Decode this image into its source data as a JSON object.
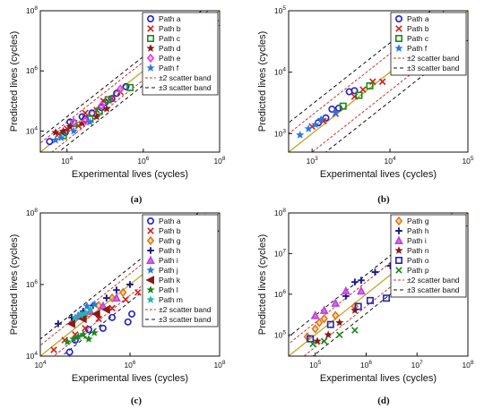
{
  "chart_data": [
    {
      "type": "scatter",
      "caption": "(a)",
      "xlabel": "Experimental lives (cycles)",
      "ylabel": "Predicted lives (cycles)",
      "xlim": [
        2000,
        100000000.0
      ],
      "ylim": [
        2000,
        100000000.0
      ],
      "log_scale": true,
      "x_tick_labels": [
        "10^4",
        "10^6",
        "10^8"
      ],
      "y_tick_labels": [
        "10^4",
        "10^6",
        "10^8"
      ],
      "legend_position": "top-right",
      "band_labels": [
        "±2 scatter band",
        "±3 scatter band"
      ],
      "series": [
        {
          "name": "Path a",
          "marker": "circle",
          "color": "#1f1fd1",
          "points": [
            [
              3500,
              4500
            ],
            [
              9000,
              9000
            ],
            [
              12000,
              20000
            ],
            [
              25000,
              30000
            ],
            [
              30000,
              25000
            ],
            [
              45000,
              40000
            ],
            [
              80000,
              60000
            ],
            [
              100000,
              90000
            ],
            [
              150000,
              120000
            ],
            [
              200000,
              180000
            ],
            [
              350000,
              300000
            ]
          ]
        },
        {
          "name": "Path b",
          "marker": "x",
          "color": "#d11f1f",
          "points": [
            [
              6000,
              8000
            ],
            [
              10000,
              12000
            ],
            [
              20000,
              15000
            ],
            [
              30000,
              40000
            ],
            [
              60000,
              50000
            ],
            [
              90000,
              100000
            ],
            [
              150000,
              120000
            ],
            [
              250000,
              200000
            ]
          ]
        },
        {
          "name": "Path c",
          "marker": "square",
          "color": "#1a8a1a",
          "points": [
            [
              8000,
              7000
            ],
            [
              15000,
              18000
            ],
            [
              40000,
              25000
            ],
            [
              70000,
              45000
            ],
            [
              120000,
              110000
            ],
            [
              450000,
              280000
            ]
          ]
        },
        {
          "name": "Path d",
          "marker": "star",
          "color": "#8b1a1a",
          "points": [
            [
              5000,
              9000
            ],
            [
              8000,
              10000
            ],
            [
              12000,
              14000
            ],
            [
              25000,
              18000
            ],
            [
              60000,
              30000
            ],
            [
              110000,
              55000
            ]
          ]
        },
        {
          "name": "Path e",
          "marker": "diamond",
          "color": "#e040e0",
          "points": [
            [
              15000,
              20000
            ],
            [
              30000,
              22000
            ],
            [
              80000,
              70000
            ],
            [
              250000,
              250000
            ]
          ]
        },
        {
          "name": "Path f",
          "marker": "star",
          "color": "#2a7ae0",
          "points": [
            [
              5000,
              5000
            ],
            [
              7000,
              6000
            ],
            [
              15000,
              10000
            ],
            [
              40000,
              20000
            ]
          ]
        }
      ]
    },
    {
      "type": "scatter",
      "caption": "(b)",
      "xlabel": "Experimental lives (cycles)",
      "ylabel": "Predicted lives (cycles)",
      "xlim": [
        500,
        100000.0
      ],
      "ylim": [
        500,
        100000.0
      ],
      "log_scale": true,
      "x_tick_labels": [
        "10^3",
        "10^4",
        "10^5"
      ],
      "y_tick_labels": [
        "10^3",
        "10^4",
        "10^5"
      ],
      "legend_position": "top-right",
      "band_labels": [
        "±2 scatter band",
        "±3 scatter band"
      ],
      "series": [
        {
          "name": "Path a",
          "marker": "circle",
          "color": "#1f1fd1",
          "points": [
            [
              1200,
              1500
            ],
            [
              1500,
              1800
            ],
            [
              1800,
              2500
            ],
            [
              2200,
              2600
            ],
            [
              3000,
              4800
            ],
            [
              3500,
              5000
            ]
          ]
        },
        {
          "name": "Path b",
          "marker": "x",
          "color": "#d11f1f",
          "points": [
            [
              1000,
              1300
            ],
            [
              1400,
              1600
            ],
            [
              2000,
              2100
            ],
            [
              3500,
              4000
            ],
            [
              4500,
              5200
            ],
            [
              6000,
              7000
            ],
            [
              8000,
              7000
            ]
          ]
        },
        {
          "name": "Path c",
          "marker": "square",
          "color": "#1a8a1a",
          "points": [
            [
              2500,
              2800
            ],
            [
              4000,
              4200
            ],
            [
              5500,
              6000
            ],
            [
              15000,
              14000
            ]
          ]
        },
        {
          "name": "Path f",
          "marker": "star",
          "color": "#2a7ae0",
          "points": [
            [
              700,
              950
            ],
            [
              900,
              1200
            ],
            [
              1100,
              1400
            ],
            [
              1300,
              1700
            ],
            [
              2000,
              2200
            ]
          ]
        }
      ]
    },
    {
      "type": "scatter",
      "caption": "(c)",
      "xlabel": "Experimental lives (cycles)",
      "ylabel": "Predicted lives (cycles)",
      "xlim": [
        10000,
        100000000.0
      ],
      "ylim": [
        10000,
        100000000.0
      ],
      "log_scale": true,
      "x_tick_labels": [
        "10^4",
        "10^6",
        "10^8"
      ],
      "y_tick_labels": [
        "10^4",
        "10^6",
        "10^8"
      ],
      "legend_position": "top-right",
      "band_labels": [
        "±2 scatter band",
        "±3 scatter band"
      ],
      "series": [
        {
          "name": "Path a",
          "marker": "circle",
          "color": "#1f1fd1",
          "points": [
            [
              45000,
              13000
            ],
            [
              60000,
              28000
            ],
            [
              120000,
              55000
            ],
            [
              250000,
              60000
            ],
            [
              400000,
              120000
            ],
            [
              900000,
              90000
            ],
            [
              1100000,
              150000
            ]
          ]
        },
        {
          "name": "Path b",
          "marker": "x",
          "color": "#d11f1f",
          "points": [
            [
              20000,
              15000
            ],
            [
              35000,
              28000
            ],
            [
              60000,
              40000
            ],
            [
              100000,
              60000
            ],
            [
              200000,
              110000
            ],
            [
              400000,
              220000
            ],
            [
              800000,
              380000
            ],
            [
              1500000,
              600000
            ]
          ]
        },
        {
          "name": "Path g",
          "marker": "diamond",
          "color": "#e07a1a",
          "points": [
            [
              60000,
              110000
            ],
            [
              120000,
              150000
            ],
            [
              200000,
              260000
            ],
            [
              400000,
              420000
            ],
            [
              700000,
              600000
            ]
          ]
        },
        {
          "name": "Path h",
          "marker": "plus",
          "color": "#1a1a8a",
          "points": [
            [
              25000,
              80000
            ],
            [
              50000,
              120000
            ],
            [
              90000,
              180000
            ],
            [
              150000,
              260000
            ],
            [
              300000,
              420000
            ],
            [
              500000,
              700000
            ],
            [
              1000000,
              1000000
            ]
          ]
        },
        {
          "name": "Path i",
          "marker": "triangle-up",
          "color": "#c040e0",
          "points": [
            [
              70000,
              130000
            ],
            [
              130000,
              180000
            ],
            [
              250000,
              250000
            ],
            [
              500000,
              420000
            ]
          ]
        },
        {
          "name": "Path j",
          "marker": "star",
          "color": "#2a7ae0",
          "points": [
            [
              80000,
              150000
            ],
            [
              110000,
              250000
            ],
            [
              160000,
              280000
            ]
          ]
        },
        {
          "name": "Path k",
          "marker": "triangle-left",
          "color": "#8b1a1a",
          "points": [
            [
              50000,
              80000
            ],
            [
              90000,
              110000
            ],
            [
              180000,
              150000
            ],
            [
              300000,
              200000
            ]
          ]
        },
        {
          "name": "Path l",
          "marker": "star",
          "color": "#1a8a1a",
          "points": [
            [
              40000,
              25000
            ],
            [
              55000,
              30000
            ],
            [
              70000,
              35000
            ],
            [
              90000,
              40000
            ],
            [
              120000,
              30000
            ],
            [
              160000,
              45000
            ]
          ]
        },
        {
          "name": "Path m",
          "marker": "star",
          "color": "#1ab8b8",
          "points": [
            [
              60000,
              120000
            ],
            [
              80000,
              140000
            ],
            [
              100000,
              160000
            ],
            [
              130000,
              200000
            ]
          ]
        }
      ]
    },
    {
      "type": "scatter",
      "caption": "(d)",
      "xlabel": "Experimental lives (cycles)",
      "ylabel": "Predicted lives (cycles)",
      "xlim": [
        30000,
        100000000.0
      ],
      "ylim": [
        30000,
        100000000.0
      ],
      "log_scale": true,
      "x_tick_labels": [
        "10^5",
        "10^6",
        "10^7",
        "10^8"
      ],
      "y_tick_labels": [
        "10^5",
        "10^6",
        "10^7",
        "10^8"
      ],
      "legend_position": "top-right",
      "band_labels": [
        "±2 scatter band",
        "±3 scatter band"
      ],
      "series": [
        {
          "name": "Path g",
          "marker": "diamond",
          "color": "#e07a1a",
          "points": [
            [
              70000,
              90000
            ],
            [
              100000,
              140000
            ],
            [
              120000,
              200000
            ],
            [
              150000,
              250000
            ],
            [
              250000,
              300000
            ],
            [
              600000,
              500000
            ]
          ]
        },
        {
          "name": "Path h",
          "marker": "plus",
          "color": "#1a1a8a",
          "points": [
            [
              400000,
              900000
            ],
            [
              600000,
              2000000
            ],
            [
              800000,
              2200000
            ],
            [
              1500000,
              3500000
            ],
            [
              3000000,
              5000000
            ]
          ]
        },
        {
          "name": "Path i",
          "marker": "triangle-up",
          "color": "#c040e0",
          "points": [
            [
              100000,
              300000
            ],
            [
              150000,
              400000
            ],
            [
              250000,
              600000
            ],
            [
              400000,
              1200000
            ],
            [
              800000,
              1200000
            ]
          ]
        },
        {
          "name": "Path n",
          "marker": "star",
          "color": "#8b1a1a",
          "points": [
            [
              110000,
              70000
            ],
            [
              180000,
              100000
            ],
            [
              300000,
              200000
            ],
            [
              600000,
              400000
            ]
          ]
        },
        {
          "name": "Path o",
          "marker": "square",
          "color": "#1f1fd1",
          "points": [
            [
              80000,
              80000
            ],
            [
              200000,
              180000
            ],
            [
              700000,
              500000
            ],
            [
              1200000,
              700000
            ],
            [
              2500000,
              800000
            ]
          ]
        },
        {
          "name": "Path p",
          "marker": "x",
          "color": "#1a8a1a",
          "points": [
            [
              90000,
              60000
            ],
            [
              150000,
              70000
            ],
            [
              300000,
              100000
            ],
            [
              600000,
              130000
            ]
          ]
        }
      ]
    }
  ]
}
